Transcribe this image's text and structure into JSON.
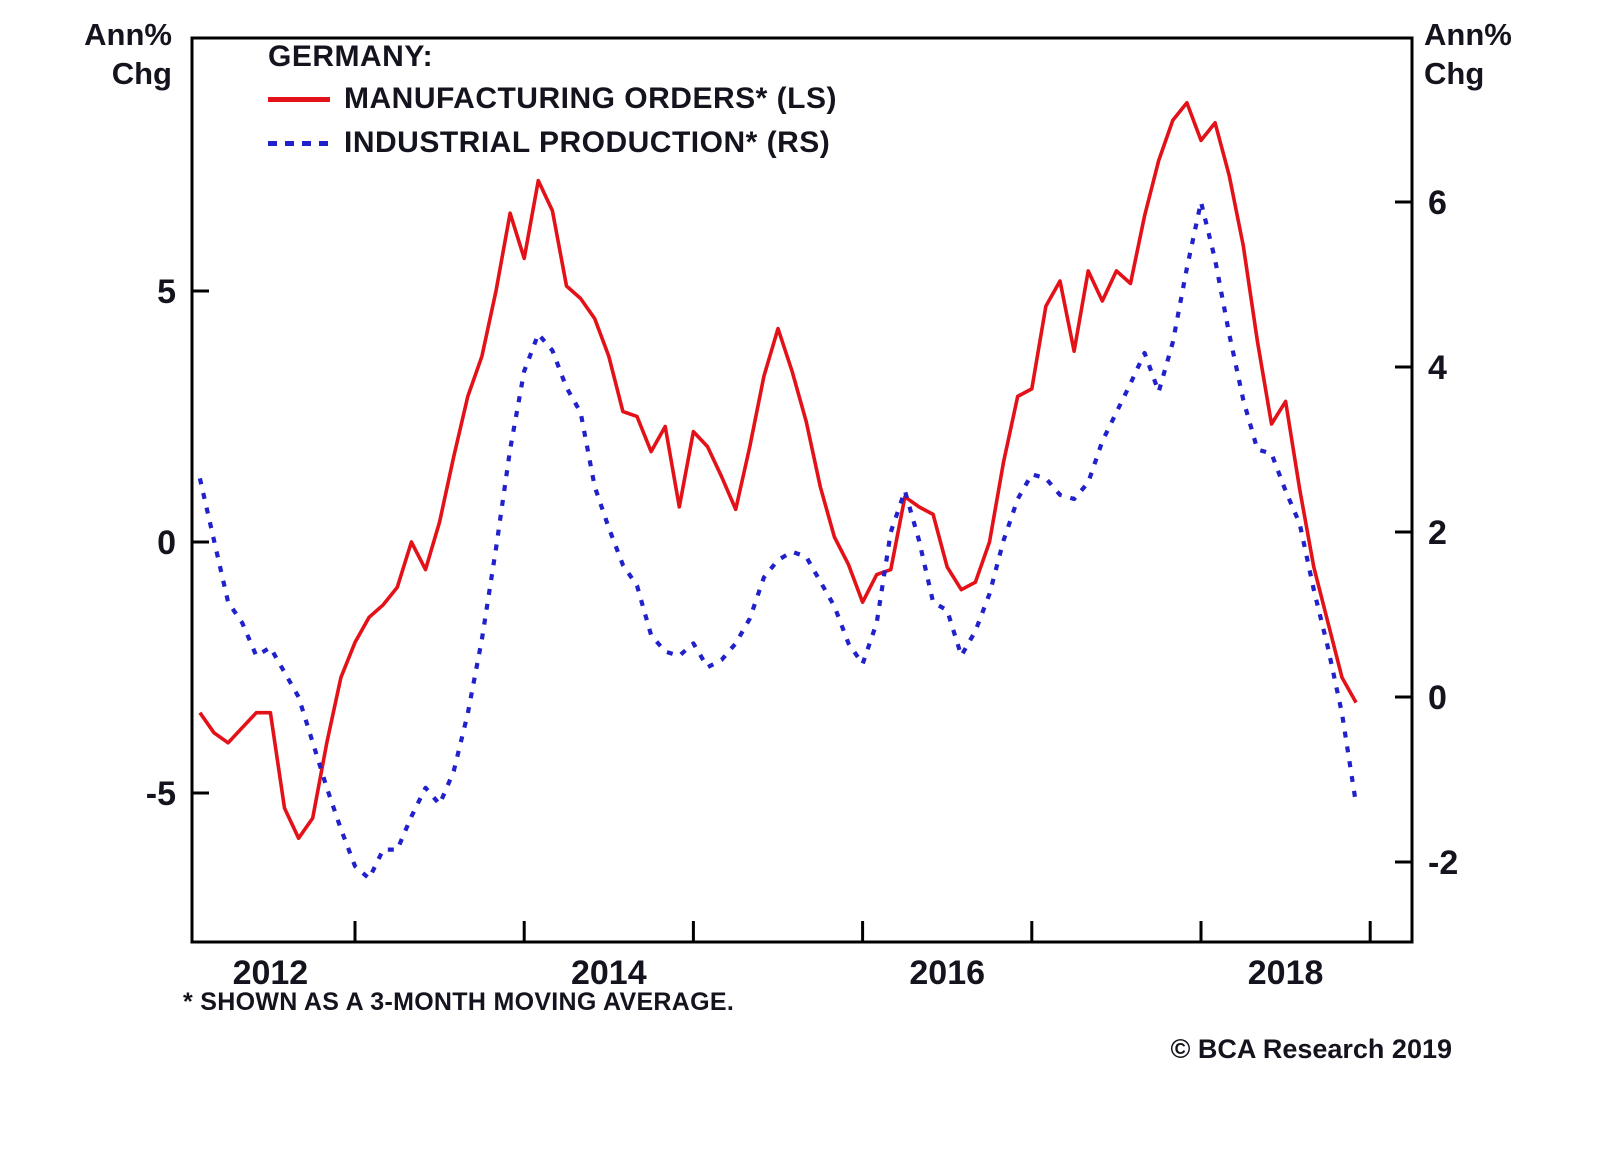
{
  "axes": {
    "unit_line1": "Ann%",
    "unit_line2": "Chg",
    "left_ticks": [
      5,
      0,
      -5
    ],
    "right_ticks": [
      6,
      4,
      2,
      0,
      -2
    ],
    "x_tick_years": [
      2013,
      2014,
      2015,
      2016,
      2017,
      2018,
      2019
    ],
    "x_label_years": [
      "2012",
      "2014",
      "2016",
      "2018"
    ]
  },
  "legend": {
    "title": "GERMANY:",
    "orders_label": "MANUFACTURING ORDERS* (LS)",
    "production_label": "INDUSTRIAL PRODUCTION* (RS)"
  },
  "footnote": "* SHOWN AS A 3-MONTH MOVING AVERAGE.",
  "copyright": "© BCA Research 2019",
  "colors": {
    "orders": "#e31219",
    "production": "#2121cc",
    "axis": "#000000",
    "text": "#14141e"
  },
  "chart_data": {
    "type": "line",
    "title": "GERMANY: MANUFACTURING ORDERS* (LS) vs INDUSTRIAL PRODUCTION* (RS)",
    "subtitle": "Ann% Chg, shown as a 3-month moving average",
    "x_start": {
      "year": 2012,
      "month": 2
    },
    "x_step": "monthly",
    "x_axis": {
      "tick_years": [
        2013,
        2014,
        2015,
        2016,
        2017,
        2018,
        2019
      ],
      "label_years": [
        2012,
        2014,
        2016,
        2018
      ],
      "range": [
        2011.97,
        2019.33
      ]
    },
    "left_axis": {
      "label": "Ann% Chg",
      "ticks": [
        5,
        0,
        -5
      ],
      "range": [
        -8,
        10
      ]
    },
    "right_axis": {
      "label": "Ann% Chg",
      "ticks": [
        6,
        4,
        2,
        0,
        -2
      ],
      "range": [
        -3,
        8
      ]
    },
    "grid": false,
    "legend_position": "top-left-inside",
    "series": [
      {
        "name": "MANUFACTURING ORDERS* (LS)",
        "axis": "left",
        "line": "solid",
        "color": "#e31219",
        "values": [
          -3.4,
          -3.8,
          -4.0,
          -3.7,
          -3.4,
          -3.4,
          -5.3,
          -5.9,
          -5.5,
          -4.0,
          -2.7,
          -2.0,
          -1.5,
          -1.25,
          -0.9,
          0.0,
          -0.55,
          0.4,
          1.7,
          2.9,
          3.7,
          5.0,
          6.55,
          5.65,
          7.2,
          6.6,
          5.1,
          4.85,
          4.45,
          3.7,
          2.6,
          2.5,
          1.8,
          2.3,
          0.7,
          2.2,
          1.9,
          1.3,
          0.65,
          1.9,
          3.3,
          4.25,
          3.4,
          2.4,
          1.1,
          0.1,
          -0.45,
          -1.2,
          -0.65,
          -0.55,
          0.9,
          0.7,
          0.55,
          -0.5,
          -0.95,
          -0.8,
          0.0,
          1.6,
          2.9,
          3.05,
          4.7,
          5.2,
          3.8,
          5.4,
          4.8,
          5.4,
          5.15,
          6.5,
          7.6,
          8.4,
          8.75,
          8.0,
          8.35,
          7.3,
          5.9,
          4.0,
          2.35,
          2.8,
          1.05,
          -0.5,
          -1.6,
          -2.7,
          -3.2
        ]
      },
      {
        "name": "INDUSTRIAL PRODUCTION* (RS)",
        "axis": "right",
        "line": "dashed",
        "color": "#2121cc",
        "values": [
          2.65,
          1.9,
          1.15,
          0.9,
          0.5,
          0.6,
          0.3,
          0.0,
          -0.55,
          -1.1,
          -1.6,
          -2.05,
          -2.2,
          -1.85,
          -1.85,
          -1.45,
          -1.1,
          -1.3,
          -0.9,
          -0.2,
          0.7,
          1.8,
          3.0,
          3.95,
          4.4,
          4.2,
          3.75,
          3.45,
          2.55,
          2.05,
          1.6,
          1.35,
          0.75,
          0.55,
          0.5,
          0.65,
          0.36,
          0.45,
          0.65,
          0.95,
          1.45,
          1.66,
          1.76,
          1.7,
          1.4,
          1.1,
          0.65,
          0.4,
          0.9,
          2.0,
          2.5,
          1.9,
          1.15,
          1.05,
          0.5,
          0.8,
          1.25,
          1.9,
          2.4,
          2.7,
          2.65,
          2.45,
          2.4,
          2.6,
          3.1,
          3.45,
          3.8,
          4.17,
          3.7,
          4.3,
          5.2,
          6.0,
          5.3,
          4.4,
          3.6,
          3.0,
          2.95,
          2.5,
          2.1,
          1.3,
          0.6,
          -0.2,
          -1.3
        ]
      }
    ]
  }
}
